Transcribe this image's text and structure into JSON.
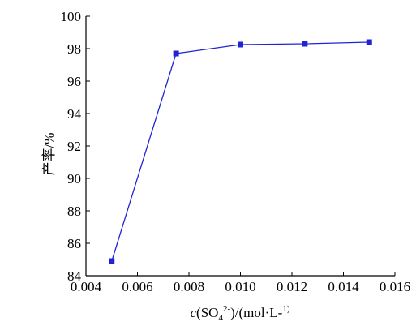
{
  "chart_data": {
    "type": "line",
    "x": [
      0.005,
      0.0075,
      0.01,
      0.0125,
      0.015
    ],
    "series": [
      {
        "values": [
          84.9,
          97.7,
          98.25,
          98.3,
          98.4
        ]
      }
    ],
    "xlim": [
      0.004,
      0.016
    ],
    "ylim": [
      84,
      100
    ],
    "xticks": [
      "0.004",
      "0.006",
      "0.008",
      "0.010",
      "0.012",
      "0.014",
      "0.016"
    ],
    "yticks": [
      "84",
      "86",
      "88",
      "90",
      "92",
      "94",
      "96",
      "98",
      "100"
    ],
    "xlabel": "c(SO42-)/(mol·L-1)",
    "ylabel": "产率/%",
    "grid": false,
    "colors": {
      "series": "#2323d6",
      "axis": "#000000"
    }
  }
}
